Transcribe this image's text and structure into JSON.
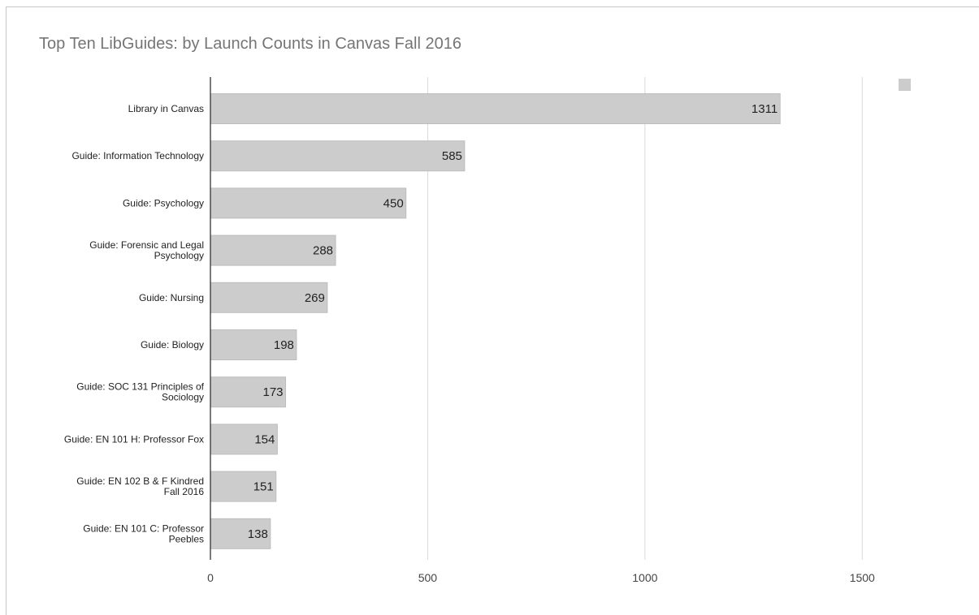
{
  "chart_data": {
    "type": "bar",
    "orientation": "horizontal",
    "title": "Top Ten LibGuides: by Launch Counts in Canvas Fall 2016",
    "categories": [
      "Library in Canvas",
      "Guide: Information Technology",
      "Guide: Psychology",
      "Guide: Forensic and Legal Psychology",
      "Guide: Nursing",
      "Guide: Biology",
      "Guide: SOC 131 Principles of Sociology",
      "Guide: EN 101 H: Professor Fox",
      "Guide: EN 102 B & F Kindred Fall 2016",
      "Guide: EN 101 C: Professor Peebles"
    ],
    "category_lines": [
      [
        "Library in Canvas"
      ],
      [
        "Guide: Information Technology"
      ],
      [
        "Guide: Psychology"
      ],
      [
        "Guide: Forensic and Legal",
        "Psychology"
      ],
      [
        "Guide: Nursing"
      ],
      [
        "Guide: Biology"
      ],
      [
        "Guide: SOC 131 Principles of",
        "Sociology"
      ],
      [
        "Guide: EN 101 H: Professor Fox"
      ],
      [
        "Guide: EN 102 B & F Kindred",
        "Fall 2016"
      ],
      [
        "Guide: EN 101 C: Professor",
        "Peebles"
      ]
    ],
    "values": [
      1311,
      585,
      450,
      288,
      269,
      198,
      173,
      154,
      151,
      138
    ],
    "xlim": [
      0,
      1750
    ],
    "xticks": [
      0,
      500,
      1000,
      1500
    ],
    "grid": true,
    "legend_position": "top-right",
    "legend_label": "",
    "xlabel": "",
    "ylabel": "",
    "colors": {
      "bar": "#cccccc",
      "bar_stroke": "#bdbdbd",
      "grid": "#d9d9d9",
      "axis": "#333333",
      "title": "#757575"
    }
  }
}
